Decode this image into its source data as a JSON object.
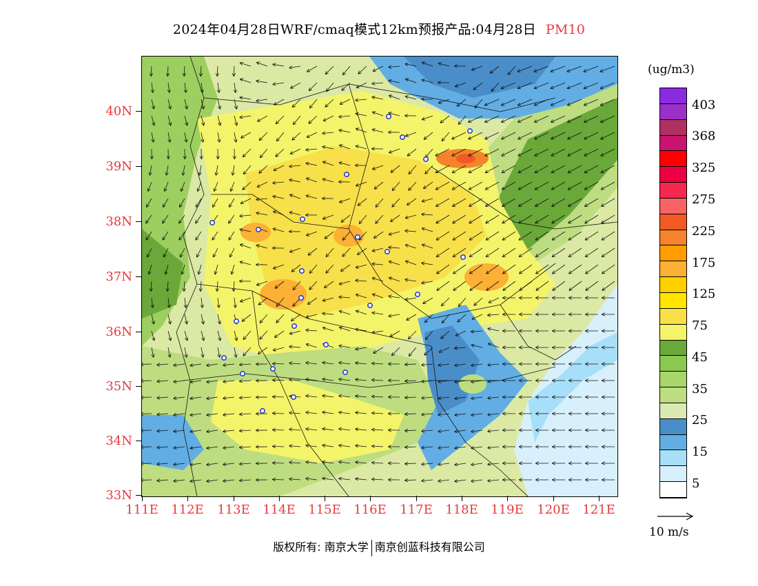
{
  "title": {
    "main": "2024年04月28日WRF/cmaq模式12km预报产品:04月28日",
    "pollutant": "PM10"
  },
  "colors": {
    "accent_red": "#e8383d"
  },
  "map": {
    "lat_labels": [
      "40N",
      "39N",
      "38N",
      "37N",
      "36N",
      "35N",
      "34N",
      "33N"
    ],
    "lon_labels": [
      "111E",
      "112E",
      "113E",
      "114E",
      "115E",
      "116E",
      "117E",
      "118E",
      "119E",
      "120E",
      "121E"
    ],
    "stations": 24
  },
  "legend": {
    "unit": "(ug/m3)",
    "labels": [
      "403",
      "368",
      "325",
      "275",
      "225",
      "175",
      "125",
      "75",
      "45",
      "35",
      "25",
      "15",
      "5"
    ],
    "colors": [
      "#ffffff",
      "#d8f0fb",
      "#a8dff8",
      "#62aee4",
      "#4a8ec9",
      "#dbe9b5",
      "#bedd80",
      "#a9d66a",
      "#8cc850",
      "#6aa83a",
      "#f4f46a",
      "#f7e04a",
      "#ffe500",
      "#ffd000",
      "#fcb035",
      "#ff9c00",
      "#f5832b",
      "#f15a24",
      "#f86464",
      "#f5284f",
      "#ed0043",
      "#ff0000",
      "#c8146e",
      "#b03060",
      "#9b30c8",
      "#8a2be2"
    ]
  },
  "vector_label": "10 m/s",
  "copyright": {
    "prefix": "版权所有: 南京大学",
    "company": "南京创蓝科技有限公司"
  }
}
